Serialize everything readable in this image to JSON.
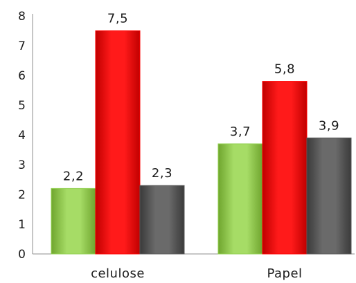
{
  "chart_data": {
    "type": "bar",
    "categories": [
      "celulose",
      "Papel"
    ],
    "series": [
      {
        "values": [
          2.2,
          3.7
        ],
        "labels": [
          "2,2",
          "3,7"
        ],
        "color": "#92d050"
      },
      {
        "values": [
          7.5,
          5.8
        ],
        "labels": [
          "7,5",
          "5,8"
        ],
        "color": "#ff0000"
      },
      {
        "values": [
          2.3,
          3.9
        ],
        "labels": [
          "2,3",
          "3,9"
        ],
        "color": "#595959"
      }
    ],
    "ylim": [
      0,
      8
    ],
    "yticks": [
      0,
      1,
      2,
      3,
      4,
      5,
      6,
      7,
      8
    ],
    "grid": false,
    "legend": "none"
  }
}
